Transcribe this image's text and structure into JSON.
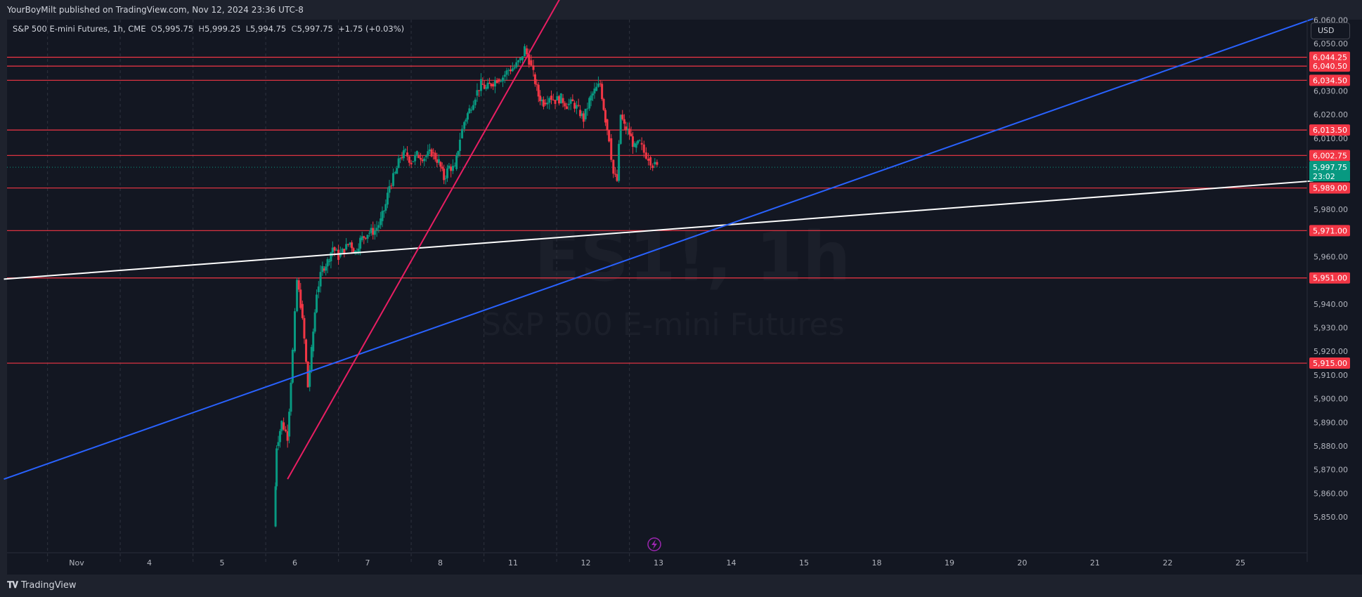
{
  "header": {
    "published": "YourBoyMilt published on TradingView.com, Nov 12, 2024 23:36 UTC-8"
  },
  "legend": {
    "symbol": "S&P 500 E-mini Futures, 1h, CME",
    "open_label": "O",
    "open": "5,995.75",
    "high_label": "H",
    "high": "5,999.25",
    "low_label": "L",
    "low": "5,994.75",
    "close_label": "C",
    "close": "5,997.75",
    "change": "+1.75 (+0.03%)"
  },
  "currency_button": "USD",
  "watermark": {
    "ticker": "ES1!, 1h",
    "name": "S&P 500 E-mini Futures"
  },
  "price_axis": {
    "ticks": [
      {
        "price": 6060,
        "label": "6,060.00"
      },
      {
        "price": 6050,
        "label": "6,050.00"
      },
      {
        "price": 6030,
        "label": "6,030.00"
      },
      {
        "price": 6020,
        "label": "6,020.00"
      },
      {
        "price": 6010,
        "label": "6,010.00"
      },
      {
        "price": 5980,
        "label": "5,980.00"
      },
      {
        "price": 5960,
        "label": "5,960.00"
      },
      {
        "price": 5940,
        "label": "5,940.00"
      },
      {
        "price": 5930,
        "label": "5,930.00"
      },
      {
        "price": 5920,
        "label": "5,920.00"
      },
      {
        "price": 5910,
        "label": "5,910.00"
      },
      {
        "price": 5900,
        "label": "5,900.00"
      },
      {
        "price": 5890,
        "label": "5,890.00"
      },
      {
        "price": 5880,
        "label": "5,880.00"
      },
      {
        "price": 5870,
        "label": "5,870.00"
      },
      {
        "price": 5860,
        "label": "5,860.00"
      },
      {
        "price": 5850,
        "label": "5,850.00"
      }
    ],
    "current_price": {
      "price": 5997.75,
      "label": "5,997.75",
      "countdown": "23:02",
      "color": "#089981"
    }
  },
  "horizontal_levels": [
    {
      "price": 6044.25,
      "label": "6,044.25"
    },
    {
      "price": 6040.5,
      "label": "6,040.50"
    },
    {
      "price": 6034.5,
      "label": "6,034.50"
    },
    {
      "price": 6013.5,
      "label": "6,013.50"
    },
    {
      "price": 6002.75,
      "label": "6,002.75"
    },
    {
      "price": 5989.0,
      "label": "5,989.00"
    },
    {
      "price": 5971.0,
      "label": "5,971.00"
    },
    {
      "price": 5951.0,
      "label": "5,951.00"
    },
    {
      "price": 5915.0,
      "label": "5,915.00"
    }
  ],
  "time_axis": {
    "labels": [
      {
        "t": 0,
        "label": "Nov"
      },
      {
        "t": 1,
        "label": "4"
      },
      {
        "t": 2,
        "label": "5"
      },
      {
        "t": 3,
        "label": "6"
      },
      {
        "t": 4,
        "label": "7"
      },
      {
        "t": 5,
        "label": "8"
      },
      {
        "t": 6,
        "label": "11"
      },
      {
        "t": 7,
        "label": "12"
      },
      {
        "t": 8,
        "label": "13"
      },
      {
        "t": 9,
        "label": "14"
      },
      {
        "t": 10,
        "label": "15"
      },
      {
        "t": 11,
        "label": "18"
      },
      {
        "t": 12,
        "label": "19"
      },
      {
        "t": 13,
        "label": "20"
      },
      {
        "t": 14,
        "label": "21"
      },
      {
        "t": 15,
        "label": "22"
      },
      {
        "t": 16,
        "label": "25"
      }
    ],
    "session_breaks": [
      -0.4,
      0.6,
      1.6,
      2.6,
      3.6,
      4.6,
      5.6,
      6.6,
      7.6
    ]
  },
  "trendlines": [
    {
      "name": "white-trendline",
      "color": "#ffffff",
      "from": {
        "t": -1.0,
        "p": 5950.5
      },
      "to": {
        "t": 17.0,
        "p": 5992.0
      }
    },
    {
      "name": "blue-trendline",
      "color": "#2962ff",
      "from": {
        "t": -1.0,
        "p": 5866.0
      },
      "to": {
        "t": 17.0,
        "p": 6060.5
      }
    },
    {
      "name": "pink-trendline",
      "color": "#e91e63",
      "from": {
        "t": 2.9,
        "p": 5866.0
      },
      "to": {
        "t": 6.7,
        "p": 6072.0
      }
    }
  ],
  "candles_path": [
    [
      2.72,
      5846
    ],
    [
      2.75,
      5880
    ],
    [
      2.82,
      5890
    ],
    [
      2.9,
      5884
    ],
    [
      2.97,
      5920
    ],
    [
      3.03,
      5950
    ],
    [
      3.08,
      5940
    ],
    [
      3.13,
      5925
    ],
    [
      3.18,
      5905
    ],
    [
      3.23,
      5920
    ],
    [
      3.3,
      5945
    ],
    [
      3.38,
      5955
    ],
    [
      3.45,
      5958
    ],
    [
      3.52,
      5964
    ],
    [
      3.6,
      5960
    ],
    [
      3.68,
      5963
    ],
    [
      3.76,
      5966
    ],
    [
      3.83,
      5962
    ],
    [
      3.9,
      5967
    ],
    [
      4.0,
      5970
    ],
    [
      4.1,
      5971
    ],
    [
      4.18,
      5975
    ],
    [
      4.25,
      5982
    ],
    [
      4.3,
      5990
    ],
    [
      4.38,
      5995
    ],
    [
      4.45,
      6002
    ],
    [
      4.52,
      6004
    ],
    [
      4.6,
      6000
    ],
    [
      4.68,
      6003
    ],
    [
      4.78,
      6002
    ],
    [
      4.88,
      6004
    ],
    [
      4.98,
      6000
    ],
    [
      5.05,
      5993
    ],
    [
      5.12,
      5998
    ],
    [
      5.2,
      5997
    ],
    [
      5.27,
      6010
    ],
    [
      5.33,
      6017
    ],
    [
      5.4,
      6022
    ],
    [
      5.48,
      6028
    ],
    [
      5.56,
      6033
    ],
    [
      5.63,
      6031
    ],
    [
      5.7,
      6033
    ],
    [
      5.78,
      6035
    ],
    [
      5.86,
      6036
    ],
    [
      5.94,
      6039
    ],
    [
      6.02,
      6040
    ],
    [
      6.1,
      6043
    ],
    [
      6.16,
      6048
    ],
    [
      6.22,
      6043
    ],
    [
      6.28,
      6037
    ],
    [
      6.35,
      6028
    ],
    [
      6.42,
      6025
    ],
    [
      6.5,
      6028
    ],
    [
      6.58,
      6026
    ],
    [
      6.66,
      6027
    ],
    [
      6.74,
      6024
    ],
    [
      6.82,
      6025
    ],
    [
      6.9,
      6022
    ],
    [
      6.97,
      6018
    ],
    [
      7.05,
      6026
    ],
    [
      7.12,
      6030
    ],
    [
      7.2,
      6033
    ],
    [
      7.27,
      6018
    ],
    [
      7.32,
      6010
    ],
    [
      7.38,
      5995
    ],
    [
      7.43,
      5992
    ],
    [
      7.48,
      6020
    ],
    [
      7.53,
      6015
    ],
    [
      7.6,
      6012
    ],
    [
      7.67,
      6006
    ],
    [
      7.74,
      6008
    ],
    [
      7.8,
      6004
    ],
    [
      7.86,
      6002
    ],
    [
      7.92,
      5999
    ],
    [
      7.98,
      5997.75
    ]
  ]
}
